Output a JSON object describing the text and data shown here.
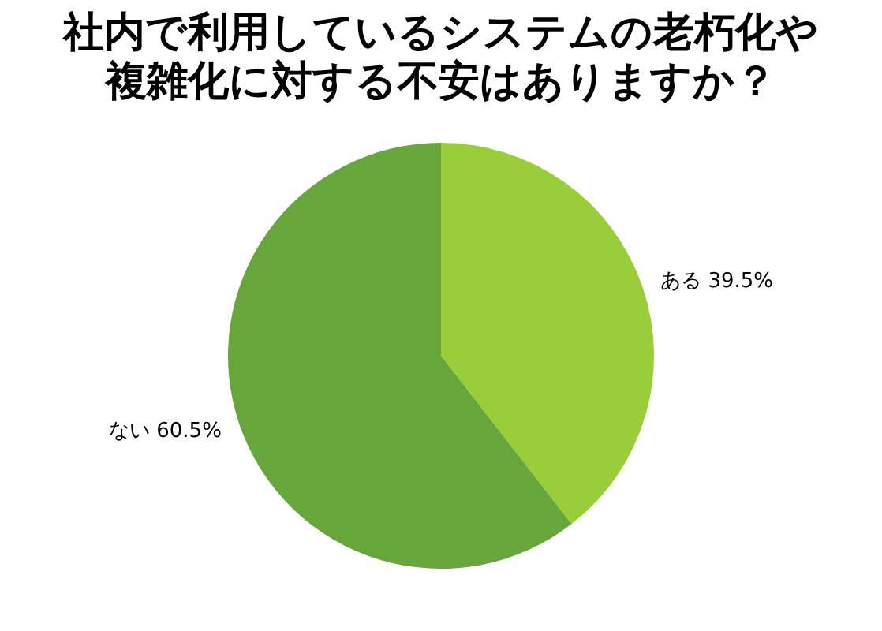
{
  "chart_data": {
    "type": "pie",
    "title": "社内で利用しているシステムの老朽化や複雑化に対する不安はありますか？",
    "categories": [
      "ある",
      "ない"
    ],
    "values": [
      39.5,
      60.5
    ],
    "value_labels": [
      "39.5%",
      "60.5%"
    ],
    "colors": [
      "#9acd3a",
      "#67a63b"
    ]
  }
}
